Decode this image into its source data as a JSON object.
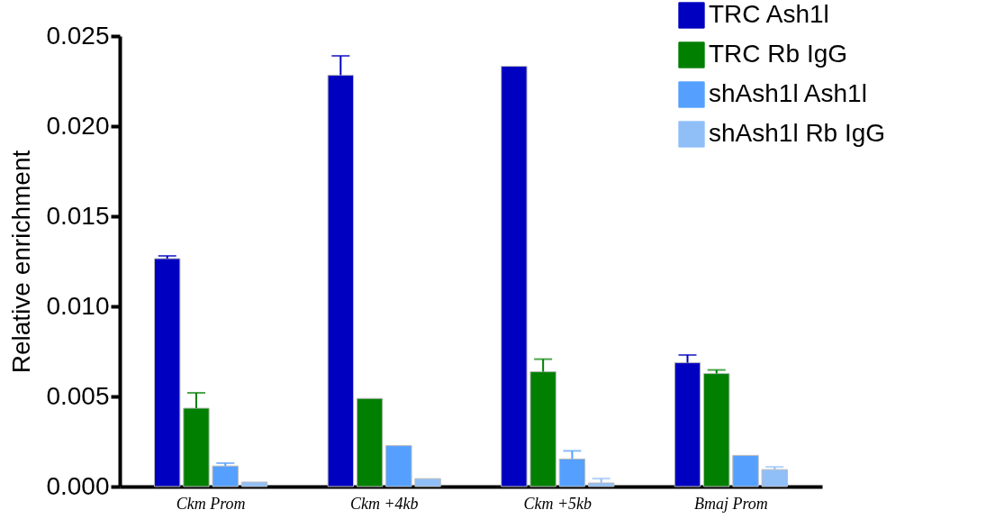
{
  "chart_data": {
    "type": "bar",
    "ylabel": "Relative enrichment",
    "categories": [
      "Ckm Prom",
      "Ckm +4kb",
      "Ckm +5kb",
      "Bmaj Prom"
    ],
    "series": [
      {
        "name": "TRC Ash1l",
        "color": "#0000c0",
        "values": [
          0.01265,
          0.02283,
          0.02332,
          0.00687
        ],
        "errors": [
          [
            0.01265,
            0.0128
          ],
          [
            0.02283,
            0.0239
          ],
          null,
          [
            0.00687,
            0.0073
          ]
        ]
      },
      {
        "name": "TRC Rb IgG",
        "color": "#007f00",
        "values": [
          0.00435,
          0.00489,
          0.00637,
          0.00627
        ],
        "errors": [
          [
            0.00435,
            0.0052
          ],
          null,
          [
            0.00637,
            0.00707
          ],
          [
            0.00627,
            0.00647
          ]
        ]
      },
      {
        "name": "shAsh1l Ash1l",
        "color": "#55a0ff",
        "values": [
          0.00114,
          0.00227,
          0.00153,
          0.00173
        ],
        "errors": [
          [
            0.00114,
            0.0013
          ],
          null,
          [
            0.00153,
            0.00198
          ],
          null
        ]
      },
      {
        "name": "shAsh1l Rb IgG",
        "color": "#90bff8",
        "values": [
          0.00025,
          0.00044,
          0.0002,
          0.00094
        ],
        "errors": [
          null,
          null,
          [
            0.0002,
            0.00044
          ],
          [
            0.00094,
            0.00109
          ]
        ]
      }
    ],
    "ylim": [
      0,
      0.025
    ],
    "yticks": [
      {
        "value": 0,
        "label": "0.000"
      },
      0.005,
      {
        "value": 0.01,
        "label": "0.010"
      },
      0.015,
      {
        "value": 0.02,
        "label": "0.020"
      },
      0.025
    ],
    "grid": false,
    "legend": "top right"
  }
}
